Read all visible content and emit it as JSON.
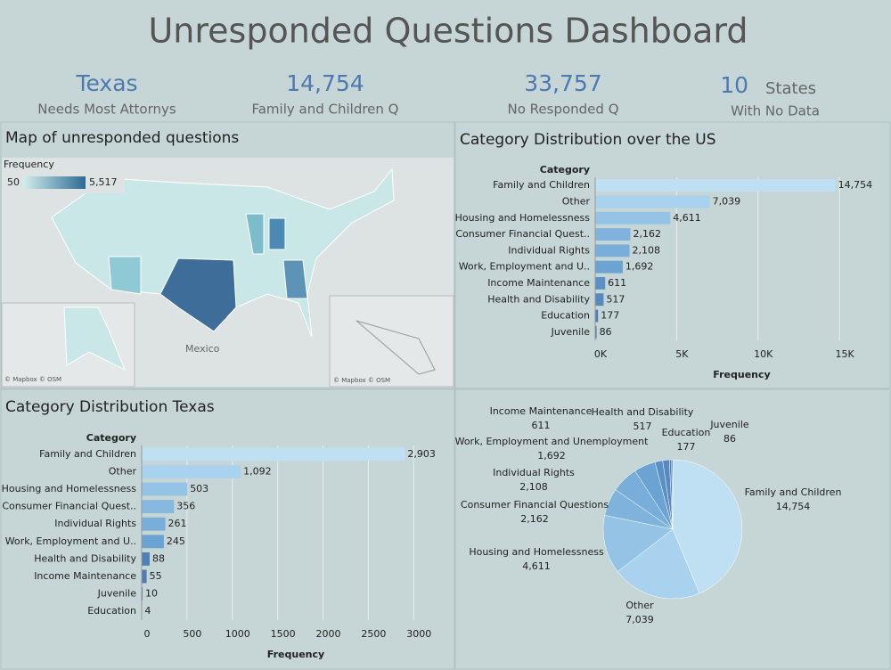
{
  "header": {
    "title": "Unresponded Questions Dashboard"
  },
  "kpis": [
    {
      "value": "Texas",
      "label": "Needs Most Attornys"
    },
    {
      "value": "14,754",
      "label": "Family and Children Q"
    },
    {
      "value": "33,757",
      "label": "No Responded Q"
    },
    {
      "value": "10",
      "unit": "States",
      "label": "With No Data"
    }
  ],
  "map": {
    "title": "Map of unresponded questions",
    "legend_title": "Frequency",
    "legend_min": "50",
    "legend_max": "5,517",
    "place_label": "Mexico",
    "credit": "© Mapbox © OSM"
  },
  "chart_data": [
    {
      "type": "hbar",
      "title": "Category Distribution over the US",
      "category_header": "Category",
      "x_label": "Frequency",
      "categories": [
        "Family and Children",
        "Other",
        "Housing and Homelessness",
        "Consumer Financial Quest..",
        "Individual Rights",
        "Work, Employment and U..",
        "Income Maintenance",
        "Health and Disability",
        "Education",
        "Juvenile"
      ],
      "values": [
        14754,
        7039,
        4611,
        2162,
        2108,
        1692,
        611,
        517,
        177,
        86
      ],
      "value_labels": [
        "14,754",
        "7,039",
        "4,611",
        "2,162",
        "2,108",
        "1,692",
        "611",
        "517",
        "177",
        "86"
      ],
      "colors": [
        "#bfe0f3",
        "#a9d2ee",
        "#94c3e6",
        "#7fb3dc",
        "#78aed9",
        "#6ba3d2",
        "#5a90c4",
        "#5589bf",
        "#4e7fb6",
        "#4a78ae"
      ],
      "xlim": [
        0,
        18000
      ],
      "xticks": [
        {
          "value": 0,
          "label": "0K"
        },
        {
          "value": 5000,
          "label": "5K"
        },
        {
          "value": 10000,
          "label": "10K"
        },
        {
          "value": 15000,
          "label": "15K"
        }
      ],
      "grid": true
    },
    {
      "type": "hbar",
      "title": "Category Distribution Texas",
      "category_header": "Category",
      "x_label": "Frequency",
      "categories": [
        "Family and Children",
        "Other",
        "Housing and Homelessness",
        "Consumer Financial Quest..",
        "Individual Rights",
        "Work, Employment and U..",
        "Health and Disability",
        "Income Maintenance",
        "Juvenile",
        "Education"
      ],
      "values": [
        2903,
        1092,
        503,
        356,
        261,
        245,
        88,
        55,
        10,
        4
      ],
      "value_labels": [
        "2,903",
        "1,092",
        "503",
        "356",
        "261",
        "245",
        "88",
        "55",
        "10",
        "4"
      ],
      "colors": [
        "#bfe0f3",
        "#a9d2ee",
        "#94c3e6",
        "#86b8e0",
        "#78aed9",
        "#6ba3d2",
        "#4f80b7",
        "#4c7cb2",
        "#4a78ae",
        "#4a78ae"
      ],
      "xlim": [
        0,
        3400
      ],
      "xticks": [
        0,
        500,
        1000,
        1500,
        2000,
        2500,
        3000
      ],
      "grid": true
    },
    {
      "type": "pie",
      "categories": [
        "Family and Children",
        "Other",
        "Housing and Homelessness",
        "Consumer Financial Questions",
        "Individual Rights",
        "Work, Employment and Unemployment",
        "Income Maintenance",
        "Health and Disability",
        "Education",
        "Juvenile"
      ],
      "values": [
        14754,
        7039,
        4611,
        2162,
        2108,
        1692,
        611,
        517,
        177,
        86
      ],
      "value_labels": [
        "14,754",
        "7,039",
        "4,611",
        "2,162",
        "2,108",
        "1,692",
        "611",
        "517",
        "177",
        "86"
      ],
      "colors": [
        "#bfe0f3",
        "#a9d2ee",
        "#94c3e6",
        "#7fb3dc",
        "#78aed9",
        "#6ba3d2",
        "#5a90c4",
        "#5589bf",
        "#4e7fb6",
        "#4a78ae"
      ]
    }
  ]
}
